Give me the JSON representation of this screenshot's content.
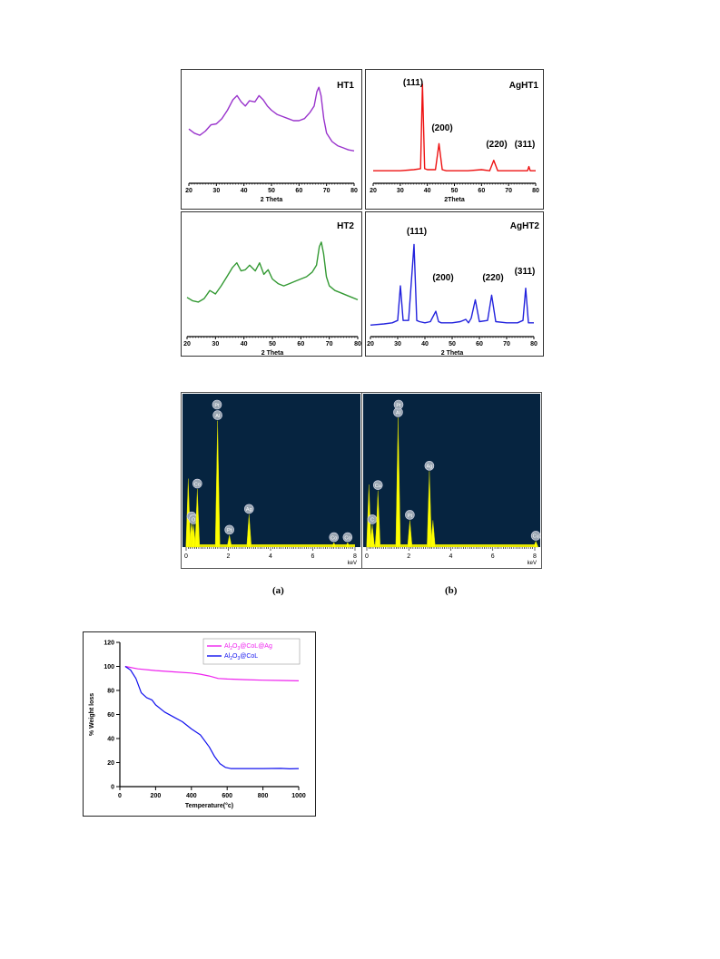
{
  "chart_data": [
    {
      "id": "xrd_ht1",
      "type": "line",
      "title": "HT1",
      "xlabel": "2 Theta",
      "xlim": [
        20,
        80
      ],
      "xticks": [
        20,
        30,
        40,
        50,
        60,
        70,
        80
      ],
      "ylim": [
        0,
        100
      ],
      "color": "#9933cc",
      "series": [
        {
          "x": [
            20,
            22,
            24,
            26,
            28,
            30,
            32,
            34,
            36,
            37.5,
            39,
            40.5,
            42,
            44,
            45.5,
            47,
            48.5,
            50,
            52,
            54,
            56,
            58,
            60,
            62,
            64,
            65.5,
            66.5,
            67.2,
            68,
            69,
            70,
            72,
            74,
            76,
            78,
            80
          ],
          "values": [
            52,
            48,
            46,
            50,
            56,
            57,
            62,
            70,
            80,
            84,
            78,
            74,
            79,
            78,
            84,
            80,
            74,
            70,
            66,
            64,
            62,
            60,
            60,
            62,
            68,
            74,
            88,
            92,
            84,
            62,
            48,
            40,
            36,
            34,
            32,
            31
          ]
        }
      ]
    },
    {
      "id": "xrd_aght1",
      "type": "line",
      "title": "AgHT1",
      "xlabel": "2Theta",
      "xlim": [
        20,
        80
      ],
      "xticks": [
        20,
        30,
        40,
        50,
        60,
        70,
        80
      ],
      "ylim": [
        0,
        100
      ],
      "color": "#ee1111",
      "peaks": [
        "(111)",
        "(200)",
        "(220)",
        "(311)"
      ],
      "series": [
        {
          "x": [
            20,
            25,
            30,
            35,
            37.5,
            38.2,
            39,
            40,
            43,
            44.3,
            45.5,
            47,
            50,
            55,
            60,
            63,
            64.5,
            66,
            70,
            75,
            77,
            77.5,
            78,
            79,
            80
          ],
          "values": [
            12,
            12,
            12,
            13,
            14,
            95,
            14,
            13,
            13,
            38,
            13,
            12,
            12,
            12,
            13,
            12,
            22,
            12,
            12,
            12,
            12,
            16,
            12,
            12,
            12
          ]
        }
      ]
    },
    {
      "id": "xrd_ht2",
      "type": "line",
      "title": "HT2",
      "xlabel": "2 Theta",
      "xlim": [
        20,
        80
      ],
      "xticks": [
        20,
        30,
        40,
        50,
        60,
        70,
        80
      ],
      "ylim": [
        0,
        100
      ],
      "color": "#339933",
      "series": [
        {
          "x": [
            20,
            22,
            24,
            26,
            28,
            30,
            32,
            34,
            36,
            37.5,
            39,
            40.5,
            42,
            44,
            45.5,
            47,
            48.5,
            50,
            52,
            54,
            56,
            58,
            60,
            62,
            64,
            65.5,
            66.5,
            67.2,
            68,
            69,
            70,
            72,
            74,
            76,
            78,
            80
          ],
          "values": [
            34,
            31,
            30,
            33,
            40,
            37,
            44,
            52,
            60,
            64,
            57,
            58,
            62,
            57,
            64,
            54,
            58,
            50,
            46,
            44,
            46,
            48,
            50,
            52,
            56,
            62,
            78,
            82,
            72,
            52,
            44,
            40,
            38,
            36,
            34,
            32
          ]
        }
      ]
    },
    {
      "id": "xrd_aght2",
      "type": "line",
      "title": "AgHT2",
      "xlabel": "2 Theta",
      "xlim": [
        20,
        80
      ],
      "xticks": [
        20,
        30,
        40,
        50,
        60,
        70,
        80
      ],
      "ylim": [
        0,
        100
      ],
      "color": "#2222dd",
      "peaks": [
        "(111)",
        "(200)",
        "(220)",
        "(311)"
      ],
      "series": [
        {
          "x": [
            20,
            25,
            28,
            30,
            31,
            32,
            34,
            36,
            37,
            38,
            40,
            42,
            44,
            45,
            46,
            50,
            53,
            55,
            56,
            57,
            58.5,
            60,
            63,
            64.5,
            66,
            70,
            74,
            76,
            77,
            78,
            80
          ],
          "values": [
            10,
            11,
            12,
            14,
            44,
            14,
            14,
            80,
            14,
            13,
            12,
            13,
            22,
            13,
            12,
            12,
            13,
            15,
            12,
            16,
            32,
            13,
            14,
            36,
            13,
            12,
            12,
            14,
            42,
            12,
            12
          ]
        }
      ]
    },
    {
      "id": "eds_a",
      "type": "bar",
      "xlabel": "keV",
      "xlim": [
        0,
        8
      ],
      "xticks": [
        0,
        2,
        4,
        6,
        8
      ],
      "ylim": [
        0,
        100
      ],
      "x": [
        0.1,
        0.26,
        0.35,
        0.53,
        1.49,
        2.05,
        2.98,
        7.0,
        7.65
      ],
      "values": [
        46,
        17,
        15,
        39,
        85,
        8,
        22,
        3,
        3
      ],
      "labels": [
        "",
        "C",
        "O",
        "Co",
        "Al",
        "Pt",
        "Ag",
        "Co",
        "Co"
      ],
      "extra_labels": [
        "Pt"
      ]
    },
    {
      "id": "eds_b",
      "type": "bar",
      "xlabel": "keV",
      "xlim": [
        0,
        8
      ],
      "xticks": [
        0,
        2,
        4,
        6,
        8
      ],
      "ylim": [
        0,
        100
      ],
      "x": [
        0.1,
        0.26,
        0.5,
        0.53,
        1.49,
        2.05,
        2.98,
        3.15,
        8.05
      ],
      "values": [
        42,
        15,
        20,
        38,
        87,
        18,
        51,
        18,
        4
      ],
      "labels": [
        "",
        "C",
        "",
        "Cu",
        "Al",
        "Pt",
        "Ag",
        "",
        "Cu"
      ],
      "extra_labels": [
        "Pt"
      ]
    },
    {
      "id": "tga",
      "type": "line",
      "xlabel": "Temperature(°c)",
      "ylabel": "% Weight loss",
      "xlim": [
        0,
        1000
      ],
      "ylim": [
        0,
        120
      ],
      "xticks": [
        0,
        200,
        400,
        600,
        800,
        1000
      ],
      "yticks": [
        0,
        20,
        40,
        60,
        80,
        100,
        120
      ],
      "series": [
        {
          "name": "Al2O3@CoL@Ag",
          "color": "#ee22ee",
          "x": [
            30,
            100,
            200,
            300,
            400,
            450,
            500,
            550,
            600,
            700,
            800,
            900,
            1000
          ],
          "values": [
            100,
            98,
            96.5,
            95.5,
            94.5,
            93.5,
            92,
            90,
            89.5,
            89,
            88.5,
            88.3,
            88
          ]
        },
        {
          "name": "Al2O3@CoL",
          "color": "#1111ee",
          "x": [
            30,
            60,
            90,
            120,
            150,
            180,
            200,
            250,
            300,
            350,
            400,
            450,
            500,
            530,
            560,
            590,
            620,
            650,
            700,
            800,
            900,
            950,
            1000
          ],
          "values": [
            100,
            97,
            90,
            78,
            74,
            72,
            68,
            62,
            58,
            54,
            48,
            43,
            33,
            25,
            19,
            16,
            15,
            15,
            15,
            15,
            15.2,
            14.8,
            15
          ]
        }
      ]
    }
  ],
  "captions": {
    "a": "(a)",
    "b": "(b)"
  },
  "tga_legend": [
    {
      "base": "Al",
      "sub1": "2",
      "mid": "O",
      "sub2": "3",
      "rest": "@CoL@Ag"
    },
    {
      "base": "Al",
      "sub1": "2",
      "mid": "O",
      "sub2": "3",
      "rest": "@CoL"
    }
  ]
}
